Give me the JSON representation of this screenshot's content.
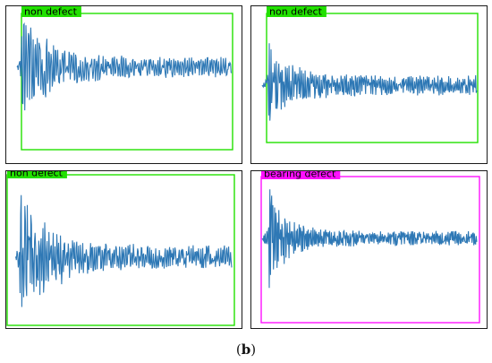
{
  "figure": {
    "caption_open": "(",
    "caption_letter": "b",
    "caption_close": ")"
  },
  "colors": {
    "signal": "#2e78b5",
    "non_defect": "#22e000",
    "bearing_defect": "#ff10ff",
    "frame": "#1a1a1a"
  },
  "chart_data": [
    {
      "type": "line",
      "label": "non defect",
      "label_color": "#22e000",
      "series": [
        {
          "values": []
        }
      ],
      "envelope": {
        "peak": 1.0,
        "onset": 0.02,
        "decay": 2.4,
        "floor": 0.18,
        "cycles": 95
      }
    },
    {
      "type": "line",
      "label": "non defect",
      "label_color": "#22e000",
      "series": [
        {
          "values": []
        }
      ],
      "envelope": {
        "peak": 0.95,
        "onset": 0.03,
        "decay": 3.2,
        "floor": 0.2,
        "cycles": 120
      }
    },
    {
      "type": "line",
      "label": "non defect",
      "label_color": "#22e000",
      "series": [
        {
          "values": []
        }
      ],
      "envelope": {
        "peak": 0.95,
        "onset": 0.02,
        "decay": 2.2,
        "floor": 0.17,
        "cycles": 110
      }
    },
    {
      "type": "line",
      "label": "bearing defect",
      "label_color": "#ff10ff",
      "series": [
        {
          "values": []
        }
      ],
      "envelope": {
        "peak": 0.9,
        "onset": 0.03,
        "decay": 4.0,
        "floor": 0.13,
        "cycles": 140
      }
    }
  ]
}
